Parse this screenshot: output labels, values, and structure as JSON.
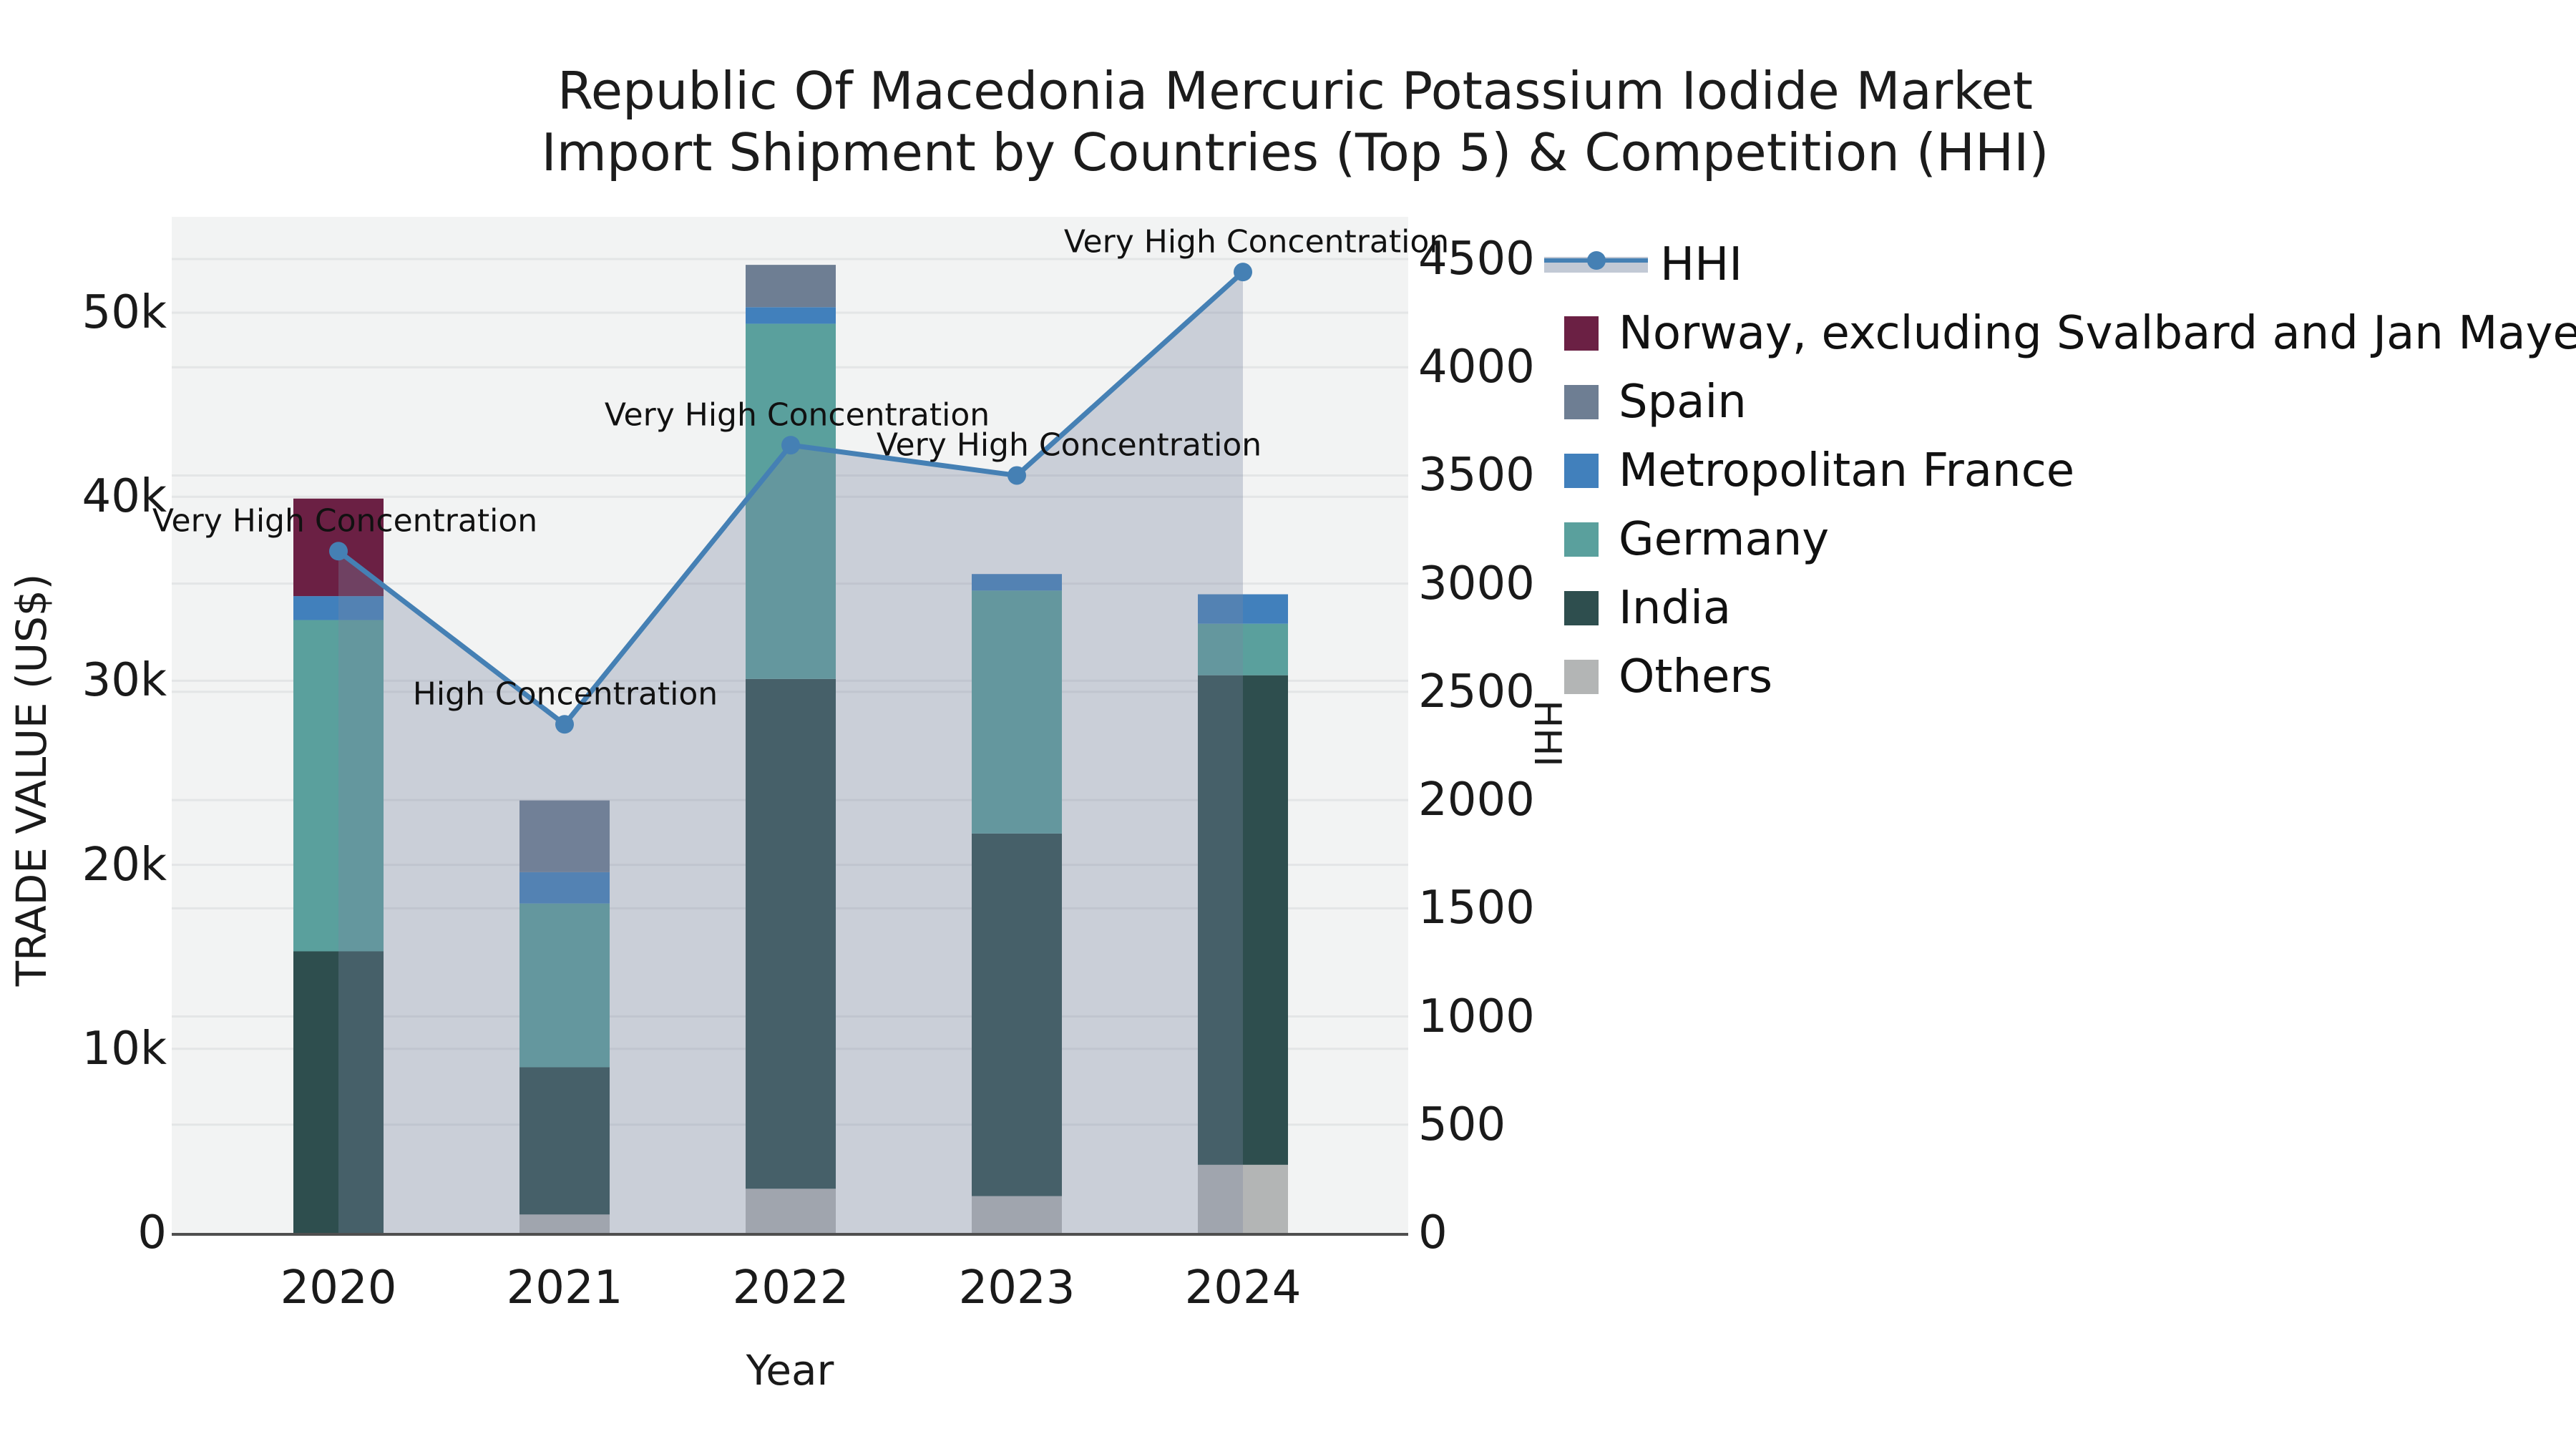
{
  "title": {
    "line1": "Republic Of Macedonia Mercuric Potassium Iodide Market",
    "line2": "Import Shipment by Countries (Top 5) & Competition (HHI)"
  },
  "axes": {
    "left": {
      "label": "TRADE VALUE (US$)",
      "tick_labels": [
        "0",
        "10k",
        "20k",
        "30k",
        "40k",
        "50k"
      ],
      "tick_values": [
        0,
        10000,
        20000,
        30000,
        40000,
        50000
      ]
    },
    "right": {
      "label": "HHI",
      "tick_labels": [
        "0",
        "500",
        "1000",
        "1500",
        "2000",
        "2500",
        "3000",
        "3500",
        "4000",
        "4500"
      ],
      "tick_values": [
        0,
        500,
        1000,
        1500,
        2000,
        2500,
        3000,
        3500,
        4000,
        4500
      ]
    },
    "x": {
      "label": "Year",
      "categories": [
        "2020",
        "2021",
        "2022",
        "2023",
        "2024"
      ]
    }
  },
  "legend": {
    "items": [
      {
        "label": "HHI",
        "type": "line",
        "color": "#4580b4",
        "band_color": "rgba(120,135,162,0.45)"
      },
      {
        "label": "Norway, excluding Svalbard and Jan Mayen",
        "type": "patch",
        "color": "#6b2044"
      },
      {
        "label": "Spain",
        "type": "patch",
        "color": "#6e7e93"
      },
      {
        "label": "Metropolitan France",
        "type": "patch",
        "color": "#4180bc"
      },
      {
        "label": "Germany",
        "type": "patch",
        "color": "#5aa09d"
      },
      {
        "label": "India",
        "type": "patch",
        "color": "#2e4e4e"
      },
      {
        "label": "Others",
        "type": "patch",
        "color": "#b3b5b5"
      }
    ]
  },
  "chart_data": {
    "type": "bar+line",
    "title": "Republic Of Macedonia Mercuric Potassium Iodide Market — Import Shipment by Countries (Top 5) & Competition (HHI)",
    "xlabel": "Year",
    "ylabel_left": "TRADE VALUE (US$)",
    "ylabel_right": "HHI",
    "ylim_left": [
      0,
      50000
    ],
    "ylim_right": [
      0,
      4500
    ],
    "grid": true,
    "legend_position": "right",
    "categories": [
      "2020",
      "2021",
      "2022",
      "2023",
      "2024"
    ],
    "stacked_series_bottom_to_top": [
      {
        "name": "Others",
        "color": "#b3b5b5",
        "values": [
          0,
          1000,
          2400,
          2000,
          3700
        ]
      },
      {
        "name": "India",
        "color": "#2e4e4e",
        "values": [
          15300,
          8000,
          27700,
          19700,
          26600
        ]
      },
      {
        "name": "Germany",
        "color": "#5aa09d",
        "values": [
          18000,
          8900,
          19300,
          13200,
          2800
        ]
      },
      {
        "name": "Metropolitan France",
        "color": "#4180bc",
        "values": [
          1300,
          1700,
          900,
          900,
          1600
        ]
      },
      {
        "name": "Spain",
        "color": "#6e7e93",
        "values": [
          0,
          3900,
          2300,
          0,
          0
        ]
      },
      {
        "name": "Norway, excluding Svalbard and Jan Mayen",
        "color": "#6b2044",
        "values": [
          5300,
          0,
          0,
          0,
          0
        ]
      }
    ],
    "bar_totals": [
      39900,
      23500,
      52600,
      35800,
      34700
    ],
    "line_series": {
      "name": "HHI",
      "axis": "right",
      "color": "#4580b4",
      "area_fill": "rgba(120,135,162,0.33)",
      "values": [
        3150,
        2350,
        3640,
        3500,
        4440
      ]
    },
    "annotations": [
      {
        "category": "2020",
        "text": "Very High Concentration"
      },
      {
        "category": "2021",
        "text": "High Concentration"
      },
      {
        "category": "2022",
        "text": "Very High Concentration"
      },
      {
        "category": "2023",
        "text": "Very High Concentration"
      },
      {
        "category": "2024",
        "text": "Very High Concentration"
      }
    ]
  },
  "colors": {
    "plot_bg": "#f2f3f3",
    "grid": "#e3e5e6",
    "spine": "#4f4f4f",
    "text": "#1a1a1a"
  }
}
